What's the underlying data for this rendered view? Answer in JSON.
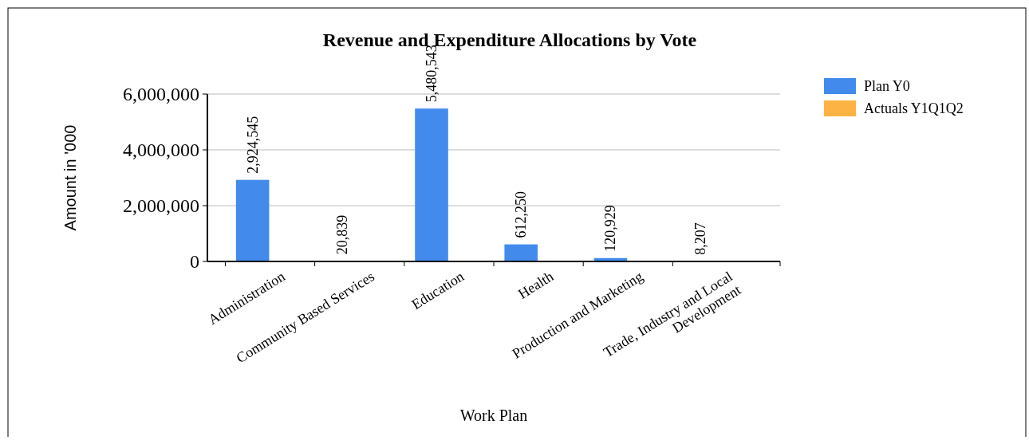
{
  "chart_data": {
    "type": "bar",
    "title": "Revenue and Expenditure Allocations by Vote",
    "xlabel": "Work Plan",
    "ylabel": "Amount in '000",
    "categories": [
      "Administration",
      "Community Based Services",
      "Education",
      "Health",
      "Production and Marketing",
      "Trade, Industry and Local Development"
    ],
    "series": [
      {
        "name": "Plan Y0",
        "color": "#428bed",
        "values": [
          2924545,
          20839,
          5480543,
          612250,
          120929,
          8207
        ],
        "value_labels": [
          "2,924,545",
          "20,839",
          "5,480,543",
          "612,250",
          "120,929",
          "8,207"
        ]
      },
      {
        "name": "Actuals Y1Q1Q2",
        "color": "#fdb343",
        "values": [
          null,
          null,
          null,
          null,
          null,
          null
        ]
      }
    ],
    "ylim": [
      0,
      6000000
    ],
    "yticks": [
      {
        "value": 0,
        "label": "0"
      },
      {
        "value": 2000000,
        "label": "2,000,000"
      },
      {
        "value": 4000000,
        "label": "4,000,000"
      },
      {
        "value": 6000000,
        "label": "6,000,000"
      }
    ],
    "grid": "y",
    "legend": "top right"
  }
}
